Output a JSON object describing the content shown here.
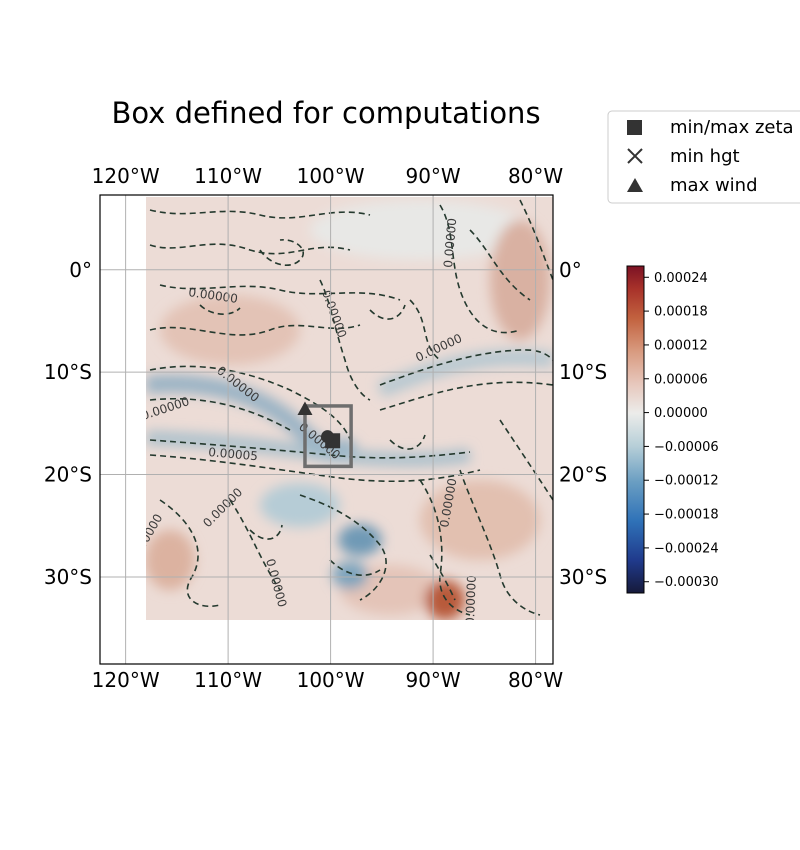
{
  "title": "Box defined for computations",
  "map": {
    "lon_labels": [
      "120°W",
      "110°W",
      "100°W",
      "90°W",
      "80°W"
    ],
    "lon_values": [
      -120,
      -110,
      -100,
      -90,
      -80
    ],
    "lat_labels": [
      "0°",
      "10°S",
      "20°S",
      "30°S"
    ],
    "lat_values": [
      0,
      -10,
      -20,
      -30
    ],
    "extent_lon": [
      -122.5,
      -78.3
    ],
    "extent_lat": [
      -38.5,
      7.3
    ],
    "data_extent_lon": [
      -118,
      -78.3
    ],
    "data_extent_lat": [
      -35,
      6.3
    ],
    "contour_label": "0.00000",
    "contour_label_alt": "0.00005",
    "box": {
      "lon": [
        -102.5,
        -98
      ],
      "lat": [
        -19.2,
        -13.3
      ]
    },
    "markers": {
      "min_max_zeta": {
        "lon": -99.8,
        "lat": -16.7
      },
      "min_hgt": {
        "lon": -100.3,
        "lat": -16.3
      },
      "max_wind": {
        "lon": -102.5,
        "lat": -13.6
      }
    }
  },
  "legend": {
    "items": [
      {
        "label": "min/max zeta",
        "marker": "square"
      },
      {
        "label": "min hgt",
        "marker": "x"
      },
      {
        "label": "max wind",
        "marker": "triangle"
      }
    ]
  },
  "colorbar": {
    "ticks": [
      "0.00024",
      "0.00018",
      "0.00012",
      "0.00006",
      "0.00000",
      "−0.00006",
      "−0.00012",
      "−0.00018",
      "−0.00024",
      "−0.00030"
    ],
    "tick_values": [
      0.00024,
      0.00018,
      0.00012,
      6e-05,
      0,
      -6e-05,
      -0.00012,
      -0.00018,
      -0.00024,
      -0.0003
    ],
    "range": [
      -0.00032,
      0.00026
    ],
    "colors": [
      "#161a3a",
      "#203a8c",
      "#2f72b8",
      "#6a9ec2",
      "#b7cfd8",
      "#ececea",
      "#e7c7bc",
      "#d89a7f",
      "#c2623f",
      "#a8322a",
      "#7c1224"
    ]
  }
}
